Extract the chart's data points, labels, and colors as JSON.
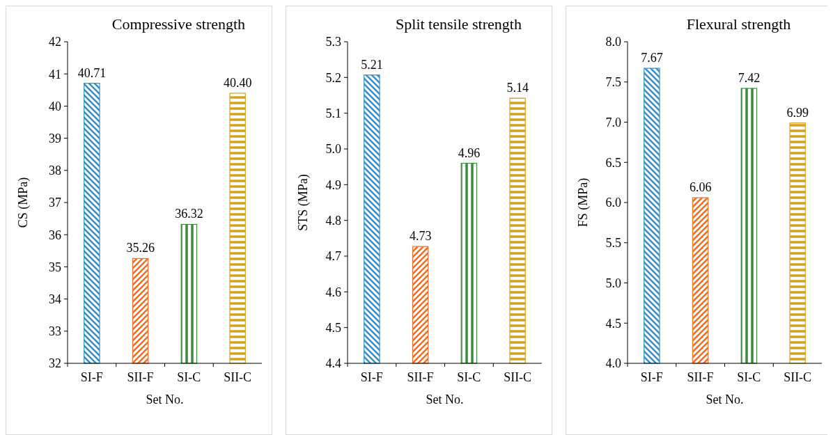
{
  "chart_data": [
    {
      "type": "bar",
      "title": "Compressive strength",
      "xlabel": "Set No.",
      "ylabel": "CS (MPa)",
      "categories": [
        "SI-F",
        "SII-F",
        "SI-C",
        "SII-C"
      ],
      "values": [
        40.71,
        35.26,
        36.32,
        40.4
      ],
      "value_labels": [
        "40.71",
        "35.26",
        "36.32",
        "40.40"
      ],
      "colors": [
        "#2e8fd0",
        "#e8702a",
        "#3c8c3c",
        "#d9a020"
      ],
      "ylim": [
        32,
        42
      ],
      "yticks": [
        32,
        33,
        34,
        35,
        36,
        37,
        38,
        39,
        40,
        41,
        42
      ],
      "grid": false
    },
    {
      "type": "bar",
      "title": "Split tensile strength",
      "xlabel": "Set No.",
      "ylabel": "STS (MPa)",
      "categories": [
        "SI-F",
        "SII-F",
        "SI-C",
        "SII-C"
      ],
      "values": [
        5.207,
        4.727,
        4.96,
        5.142
      ],
      "value_labels": [
        "5.21",
        "4.73",
        "4.96",
        "5.14"
      ],
      "colors": [
        "#2e8fd0",
        "#e8702a",
        "#3c8c3c",
        "#d9a020"
      ],
      "ylim": [
        4.4,
        5.3
      ],
      "yticks": [
        4.4,
        4.5,
        4.6,
        4.7,
        4.8,
        4.9,
        {
          "value": 5,
          "label": "5.0"
        },
        5.1,
        5.2,
        5.3
      ],
      "grid": false
    },
    {
      "type": "bar",
      "title": "Flexural strength",
      "xlabel": "Set No.",
      "ylabel": "FS (MPa)",
      "categories": [
        "SI-F",
        "SII-F",
        "SI-C",
        "SII-C"
      ],
      "values": [
        7.67,
        6.06,
        7.42,
        6.99
      ],
      "value_labels": [
        "7.67",
        "6.06",
        "7.42",
        "6.99"
      ],
      "colors": [
        "#2e8fd0",
        "#e8702a",
        "#3c8c3c",
        "#d9a020"
      ],
      "ylim": [
        4,
        8
      ],
      "yticks": [
        {
          "value": 4,
          "label": "4.0"
        },
        4.5,
        {
          "value": 5,
          "label": "5.0"
        },
        5.5,
        {
          "value": 6,
          "label": "6.0"
        },
        6.5,
        {
          "value": 7,
          "label": "7.0"
        },
        7.5,
        {
          "value": 8,
          "label": "8.0"
        }
      ],
      "grid": false
    }
  ]
}
